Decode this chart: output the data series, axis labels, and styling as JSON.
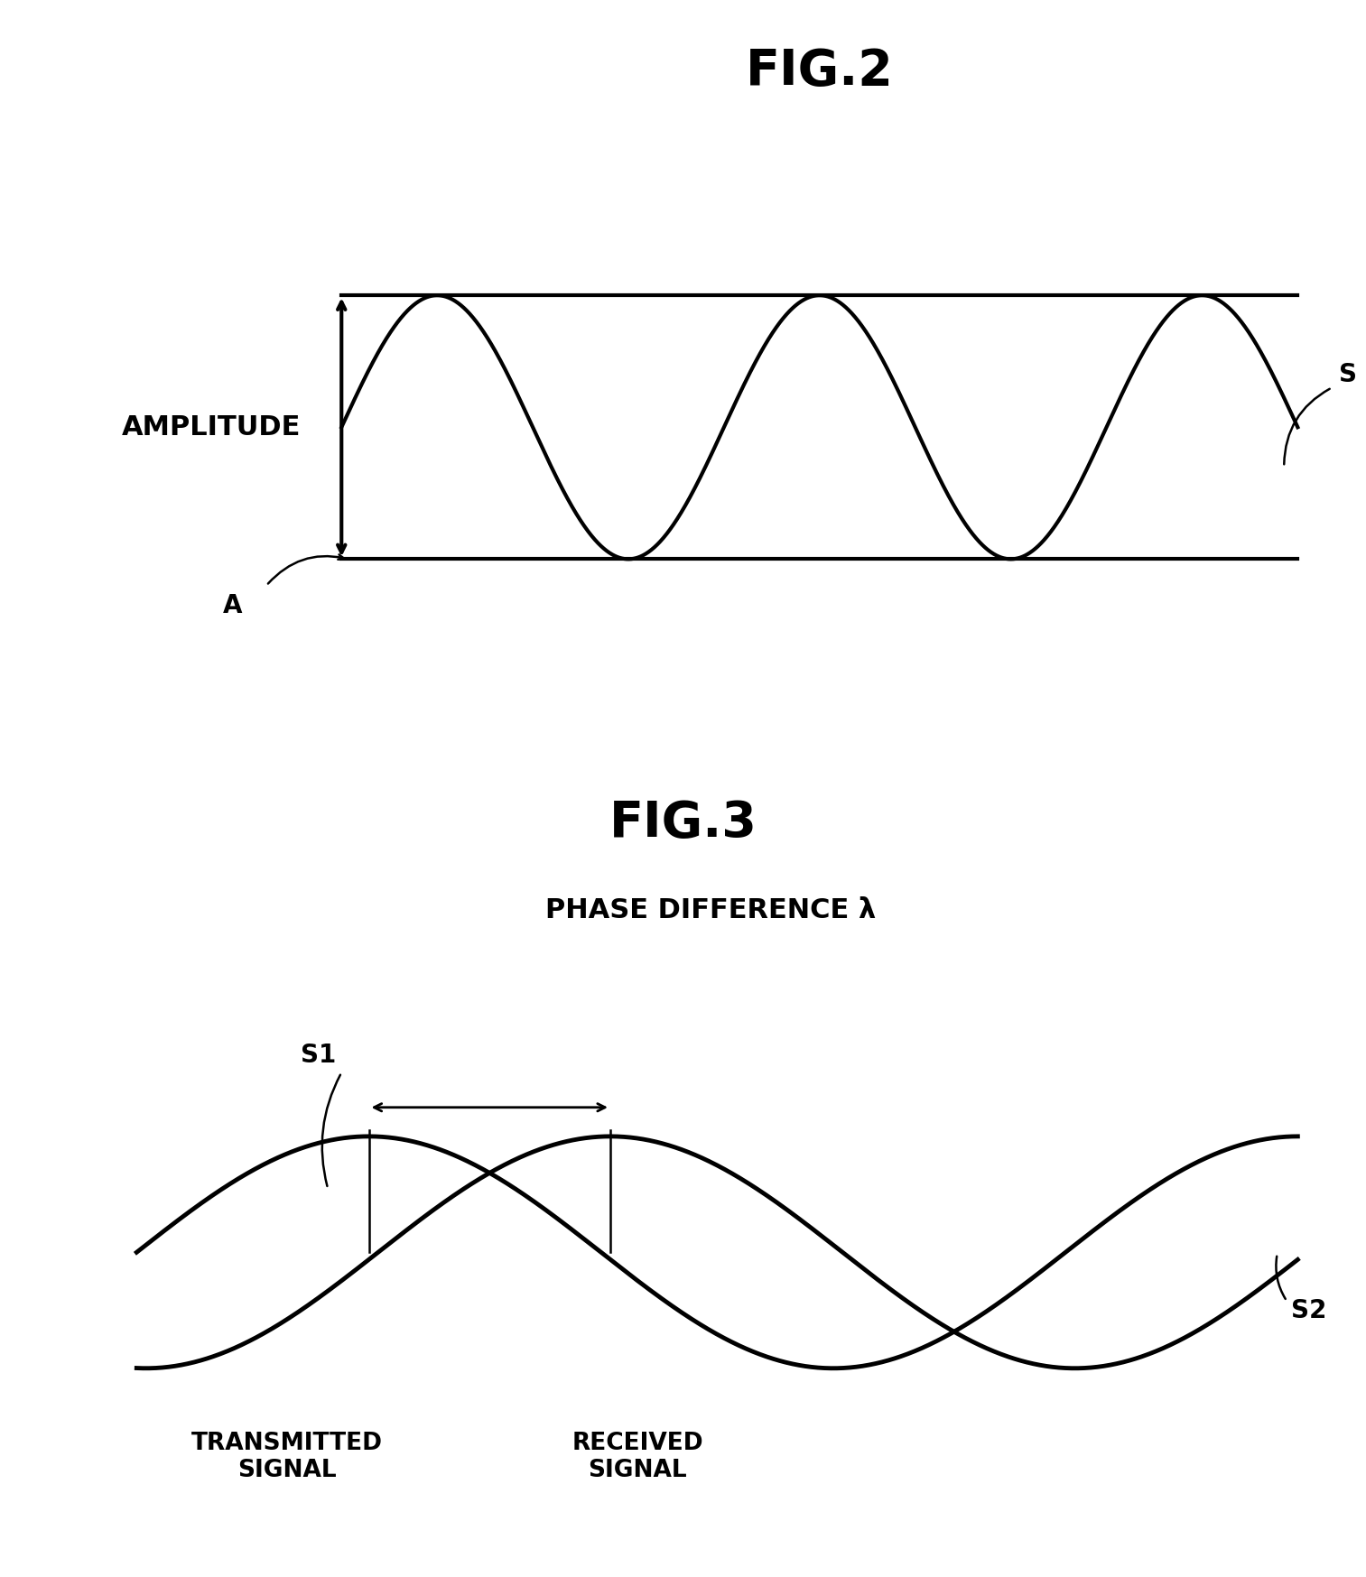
{
  "fig2_title": "FIG.2",
  "fig3_title": "FIG.3",
  "background_color": "#ffffff",
  "line_color": "#000000",
  "line_width": 3.0,
  "fig2_amplitude_label": "AMPLITUDE",
  "fig2_a_label": "A",
  "fig2_s_label": "S",
  "fig3_phase_label": "PHASE DIFFERENCE λ",
  "fig3_s1_label": "S1",
  "fig3_s2_label": "S2",
  "fig3_transmitted_label": "TRANSMITTED\nSIGNAL",
  "fig3_received_label": "RECEIVED\nSIGNAL"
}
